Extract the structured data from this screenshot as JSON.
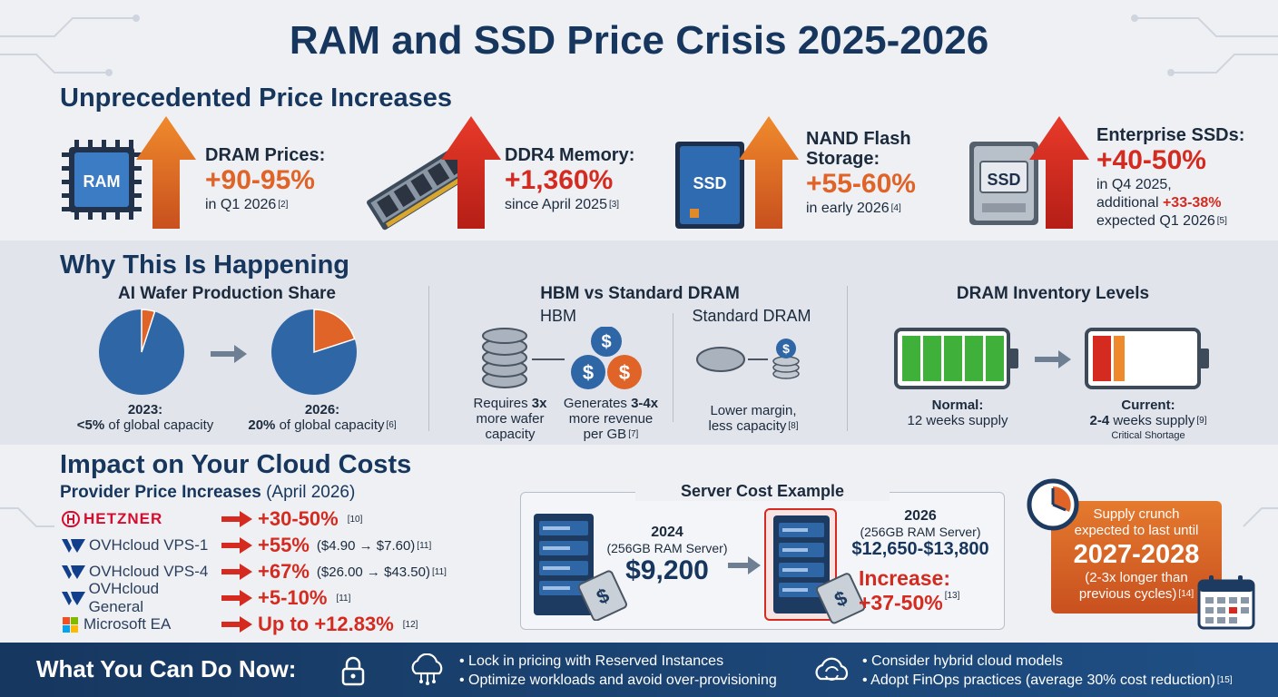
{
  "title": "RAM and SSD Price Crisis 2025-2026",
  "increases": {
    "heading": "Unprecedented Price Increases",
    "cards": [
      {
        "icon": "ram-chip-icon",
        "chip_label": "RAM",
        "title": "DRAM Prices:",
        "value": "+90-95%",
        "note": "in Q1 2026",
        "ref": "[2]"
      },
      {
        "icon": "memory-stick-icon",
        "title": "DDR4 Memory:",
        "value": "+1,360%",
        "note": "since April 2025",
        "ref": "[3]"
      },
      {
        "icon": "ssd-drive-icon",
        "chip_label": "SSD",
        "title_line1": "NAND Flash",
        "title_line2": "Storage:",
        "value": "+55-60%",
        "note": "in early 2026",
        "ref": "[4]"
      },
      {
        "icon": "enterprise-ssd-icon",
        "chip_label": "SSD",
        "title": "Enterprise SSDs:",
        "value": "+40-50%",
        "note1": "in Q4 2025,",
        "note2_prefix": "additional",
        "note2_value": "+33-38%",
        "note3": "expected Q1 2026",
        "ref": "[5]"
      }
    ]
  },
  "why": {
    "heading": "Why This Is Happening",
    "wafer": {
      "title": "AI Wafer Production Share",
      "left_year": "2023:",
      "left_value": "<5%",
      "left_text": "of global capacity",
      "right_year": "2026:",
      "right_value": "20%",
      "right_text": "of global capacity",
      "right_ref": "[6]",
      "left_share": 0.05,
      "right_share": 0.2
    },
    "hbm": {
      "title": "HBM vs Standard DRAM",
      "hbm_label": "HBM",
      "std_label": "Standard DRAM",
      "req_prefix": "Requires",
      "req_value": "3x",
      "req_l2": "more wafer",
      "req_l3": "capacity",
      "gen_prefix": "Generates",
      "gen_value": "3-4x",
      "gen_l2": "more revenue",
      "gen_l3": "per GB",
      "gen_ref": "[7]",
      "std_l1": "Lower margin,",
      "std_l2": "less capacity",
      "std_ref": "[8]"
    },
    "inventory": {
      "title": "DRAM Inventory Levels",
      "normal_label": "Normal:",
      "normal_text": "12 weeks supply",
      "current_label": "Current:",
      "current_value": "2-4",
      "current_text": "weeks supply",
      "current_ref": "[9]",
      "critical": "Critical Shortage",
      "normal_level": 0.95,
      "current_level": 0.18
    }
  },
  "impact": {
    "heading": "Impact on Your Cloud Costs",
    "sub_bold": "Provider Price Increases",
    "sub_rest": "(April 2026)",
    "providers": [
      {
        "name": "HETZNER",
        "logo": "hetzner-logo-icon",
        "pct": "+30-50%",
        "detail": "",
        "ref": "[10]"
      },
      {
        "name": "OVHcloud VPS-1",
        "logo": "ovhcloud-logo-icon",
        "pct": "+55%",
        "detail": "($4.90 → $7.60)",
        "ref": "[11]"
      },
      {
        "name": "OVHcloud VPS-4",
        "logo": "ovhcloud-logo-icon",
        "pct": "+67%",
        "detail": "($26.00 → $43.50)",
        "ref": "[11]"
      },
      {
        "name": "OVHcloud General",
        "logo": "ovhcloud-logo-icon",
        "pct": "+5-10%",
        "detail": "",
        "ref": "[11]"
      },
      {
        "name": "Microsoft EA",
        "logo": "microsoft-logo-icon",
        "pct": "Up to +12.83%",
        "detail": "",
        "ref": "[12]"
      }
    ],
    "server": {
      "title": "Server Cost Example",
      "y2024": "2024",
      "y2024_sub": "(256GB RAM Server)",
      "p2024": "$9,200",
      "y2026": "2026",
      "y2026_sub": "(256GB RAM Server)",
      "p2026": "$12,650-$13,800",
      "inc_label": "Increase:",
      "inc_value": "+37-50%",
      "inc_ref": "[13]"
    },
    "crunch": {
      "l1": "Supply crunch",
      "l2": "expected to last until",
      "years": "2027-2028",
      "l3": "(2-3x longer than",
      "l4": "previous cycles)",
      "ref": "[14]"
    }
  },
  "footer": {
    "heading": "What You Can Do Now:",
    "tips_a": [
      "• Lock in pricing with Reserved Instances",
      "• Optimize workloads and avoid over-provisioning"
    ],
    "tips_b": [
      "• Consider hybrid cloud models",
      "• Adopt FinOps practices (average 30% cost reduction)"
    ],
    "tips_b_ref": "[15]"
  },
  "colors": {
    "navy": "#17365d",
    "orange": "#e06327",
    "red": "#d42a1f",
    "pie_blue": "#2f66a6",
    "green": "#3fb03a"
  }
}
